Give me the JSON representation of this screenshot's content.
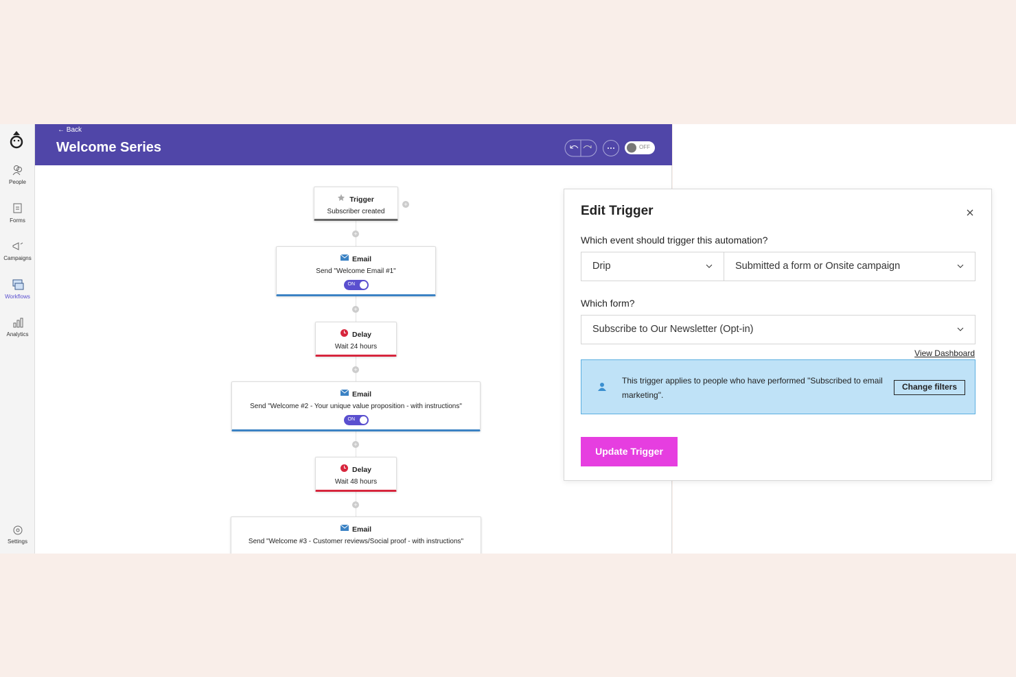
{
  "sidebar": {
    "items": [
      "People",
      "Forms",
      "Campaigns",
      "Workflows",
      "Analytics"
    ],
    "settings": "Settings"
  },
  "header": {
    "back": "Back",
    "title": "Welcome Series",
    "toggle": "OFF"
  },
  "workflow": {
    "nodes": [
      {
        "type": "Trigger",
        "text": "Subscriber created"
      },
      {
        "type": "Email",
        "text": "Send \"Welcome Email #1\"",
        "toggle": "ON"
      },
      {
        "type": "Delay",
        "text": "Wait 24 hours"
      },
      {
        "type": "Email",
        "text": "Send \"Welcome #2 - Your unique value proposition - with instructions\"",
        "toggle": "ON"
      },
      {
        "type": "Delay",
        "text": "Wait 48 hours"
      },
      {
        "type": "Email",
        "text": "Send \"Welcome #3 - Customer reviews/Social proof - with instructions\""
      }
    ]
  },
  "panel": {
    "title": "Edit Trigger",
    "question1": "Which event should trigger this automation?",
    "select1": "Drip",
    "select2": "Submitted a form or Onsite campaign",
    "question2": "Which form?",
    "select3": "Subscribe to Our Newsletter (Opt-in)",
    "link": "View Dashboard",
    "info": "This trigger applies to people who have performed \"Subscribed to email marketing\".",
    "info_button": "Change filters",
    "submit": "Update Trigger"
  }
}
